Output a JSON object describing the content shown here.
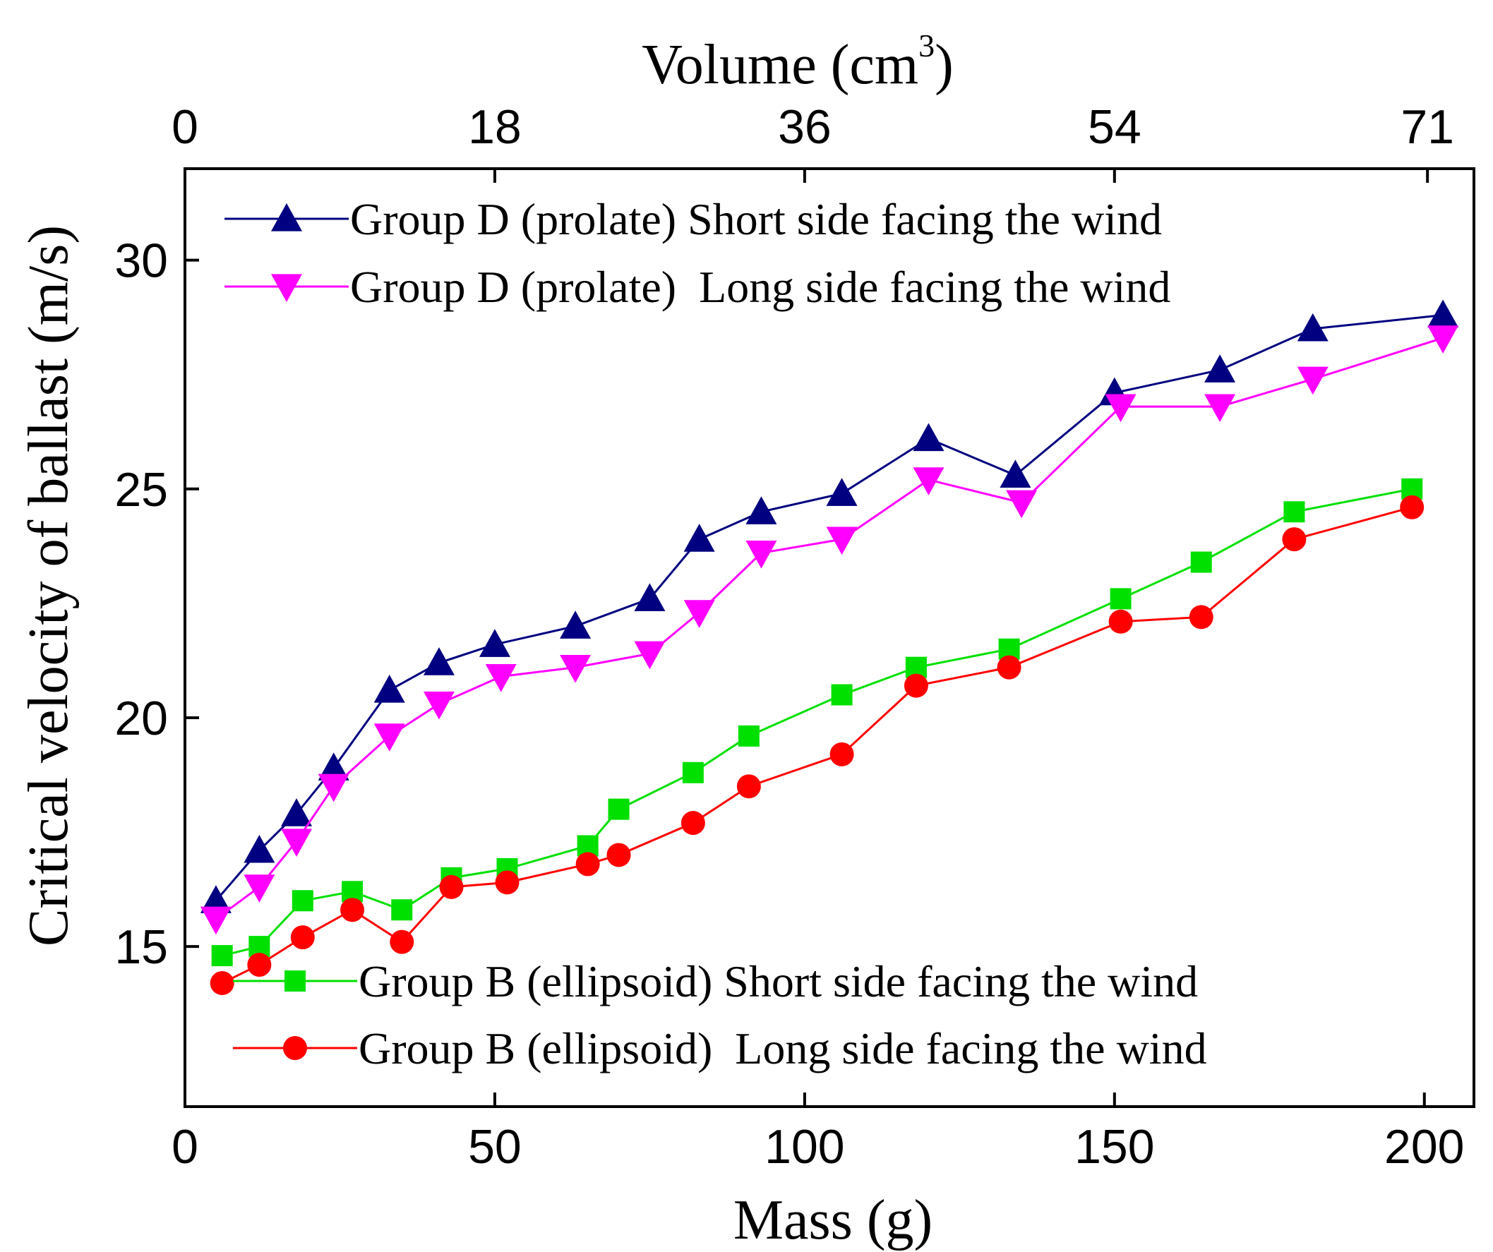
{
  "chart_data": {
    "type": "line",
    "xlabel": "Mass (g)",
    "ylabel": "Critical velocity of ballast (m/s)",
    "x2label": "Volume (cm",
    "x2label_sup": "3",
    "x2label_end": ")",
    "xlim": [
      0,
      208
    ],
    "ylim": [
      11.5,
      32
    ],
    "xticks": [
      0,
      50,
      100,
      150,
      200
    ],
    "yticks": [
      15,
      20,
      25,
      30
    ],
    "x2ticks": [
      {
        "label": "0",
        "x": 0
      },
      {
        "label": "18",
        "x": 50.0
      },
      {
        "label": "36",
        "x": 100.0
      },
      {
        "label": "54",
        "x": 150.0
      },
      {
        "label": "71",
        "x": 200.5
      }
    ],
    "grid": false,
    "series": [
      {
        "name": "Group D (prolate) Short side facing the wind",
        "color": "#000080",
        "marker": "triangle-up",
        "x": [
          5,
          12,
          18,
          24,
          33,
          41,
          50,
          63,
          75,
          83,
          93,
          106,
          120,
          134,
          150,
          167,
          182,
          203
        ],
        "y": [
          16.0,
          17.1,
          17.9,
          18.9,
          20.6,
          21.2,
          21.6,
          22.0,
          22.6,
          23.9,
          24.5,
          24.9,
          26.1,
          25.3,
          27.1,
          27.6,
          28.5,
          28.8
        ]
      },
      {
        "name": "Group D (prolate)  Long side facing the wind",
        "color": "#ff00ff",
        "marker": "triangle-down",
        "x": [
          5,
          12,
          18,
          24,
          33,
          41,
          51,
          63,
          75,
          83,
          93,
          106,
          120,
          135,
          151,
          167,
          182,
          203
        ],
        "y": [
          15.6,
          16.3,
          17.3,
          18.5,
          19.6,
          20.3,
          20.9,
          21.1,
          21.4,
          22.3,
          23.6,
          23.9,
          25.2,
          24.7,
          26.8,
          26.8,
          27.4,
          28.3
        ]
      },
      {
        "name": "Group B (ellipsoid) Short side facing the wind",
        "color": "#00e000",
        "marker": "square",
        "x": [
          6,
          12,
          19,
          27,
          35,
          43,
          52,
          65,
          70,
          82,
          91,
          106,
          118,
          133,
          151,
          164,
          179,
          198
        ],
        "y": [
          14.8,
          15.0,
          16.0,
          16.2,
          15.8,
          16.5,
          16.7,
          17.2,
          18.0,
          18.8,
          19.6,
          20.5,
          21.1,
          21.5,
          22.6,
          23.4,
          24.5,
          25.0
        ]
      },
      {
        "name": "Group B (ellipsoid)  Long side facing the wind",
        "color": "#ff0000",
        "marker": "circle",
        "x": [
          6,
          12,
          19,
          27,
          35,
          43,
          52,
          65,
          70,
          82,
          91,
          106,
          118,
          133,
          151,
          164,
          179,
          198
        ],
        "y": [
          14.2,
          14.6,
          15.2,
          15.8,
          15.1,
          16.3,
          16.4,
          16.8,
          17.0,
          17.7,
          18.5,
          19.2,
          20.7,
          21.1,
          22.1,
          22.2,
          23.9,
          24.6
        ]
      }
    ]
  }
}
